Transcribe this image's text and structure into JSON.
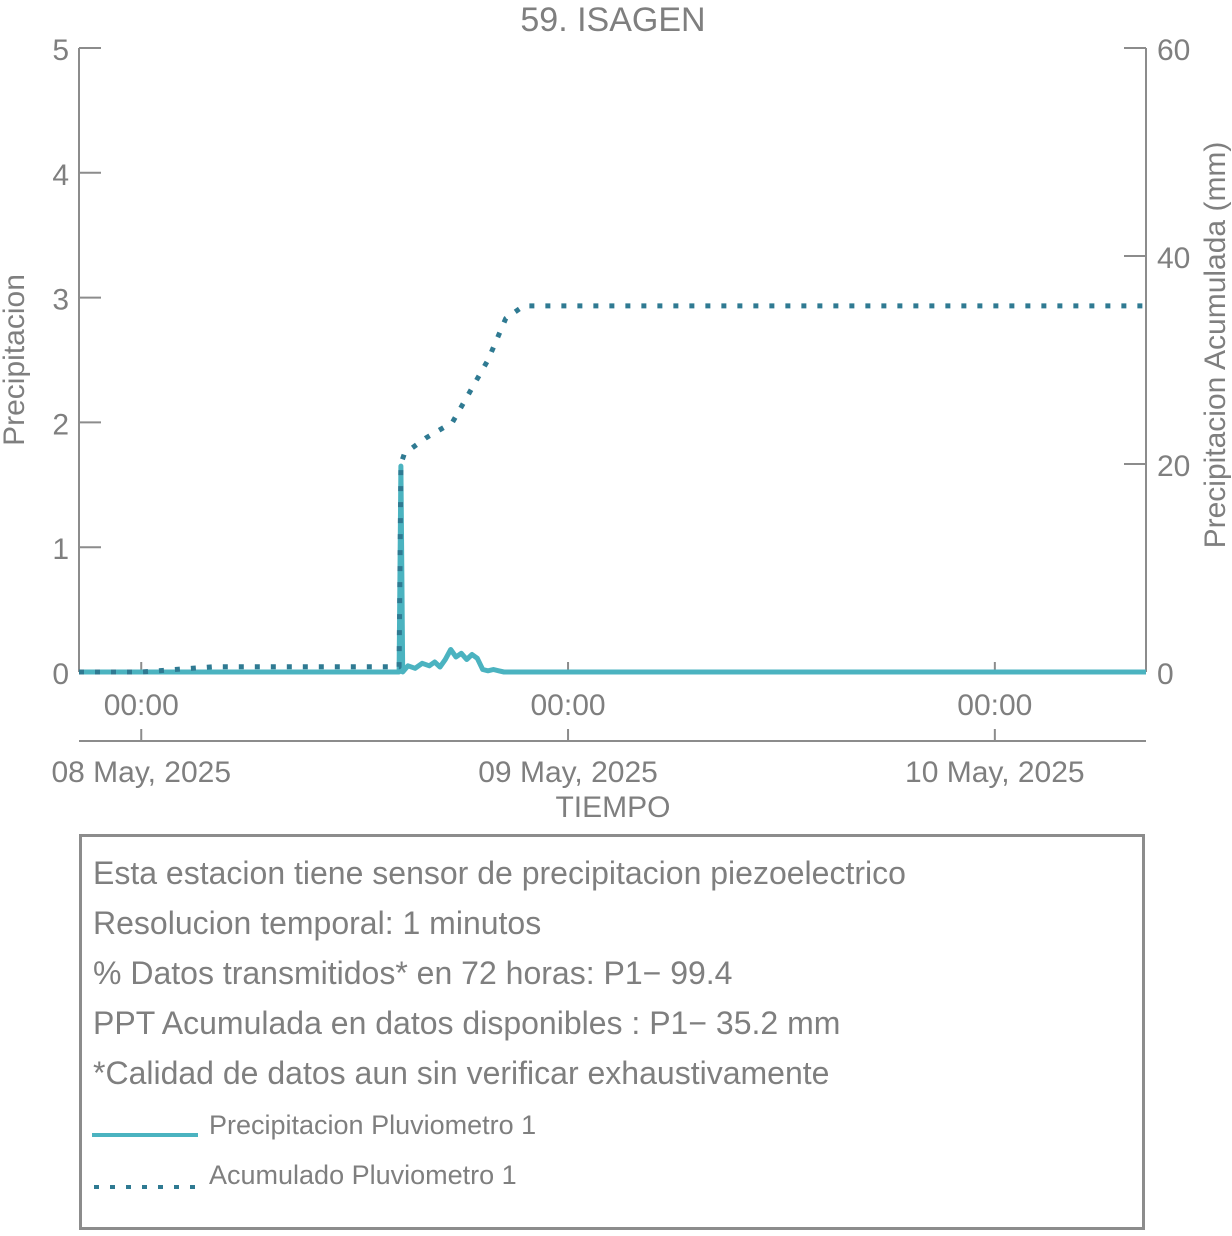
{
  "chart_data": {
    "type": "line",
    "title": "59. ISAGEN",
    "xlabel": "TIEMPO",
    "ylabel_left": "Precipitacion",
    "ylabel_right": "Precipitacion Acumulada (mm)",
    "ylim_left": [
      0,
      5
    ],
    "ylim_right": [
      0,
      60
    ],
    "yticks_left": [
      "0",
      "1",
      "2",
      "3",
      "4",
      "5"
    ],
    "yticks_right": [
      "0",
      "20",
      "40",
      "60"
    ],
    "xlim_hours": [
      -3.5,
      56.5
    ],
    "xticks": [
      {
        "hour": 0,
        "time": "00:00",
        "date": "08 May, 2025"
      },
      {
        "hour": 24,
        "time": "00:00",
        "date": "09 May, 2025"
      },
      {
        "hour": 48,
        "time": "00:00",
        "date": "10 May, 2025"
      }
    ],
    "grid": false,
    "series": [
      {
        "name": "Precipitacion Pluviometro 1",
        "axis": "left",
        "color": "#4bb3c0",
        "style": "solid",
        "x_hours": [
          -3.5,
          14.5,
          14.6,
          14.7,
          15.0,
          15.4,
          15.8,
          16.2,
          16.5,
          16.8,
          17.1,
          17.4,
          17.7,
          18.0,
          18.3,
          18.6,
          18.9,
          19.2,
          19.5,
          19.8,
          20.1,
          20.4,
          20.7,
          21.0,
          56.5
        ],
        "y": [
          0,
          0,
          1.65,
          0,
          0.05,
          0.03,
          0.07,
          0.05,
          0.08,
          0.04,
          0.1,
          0.18,
          0.12,
          0.15,
          0.1,
          0.14,
          0.11,
          0.02,
          0.01,
          0.02,
          0.01,
          0,
          0,
          0,
          0
        ]
      },
      {
        "name": "Acumulado Pluviometro 1",
        "axis": "right",
        "color": "#2f7a92",
        "style": "dotted",
        "x_hours": [
          -3.5,
          0,
          4,
          14.5,
          14.6,
          14.8,
          16,
          17.5,
          18.5,
          19.5,
          20.5,
          21.5,
          22.5,
          56.5
        ],
        "y": [
          0,
          0,
          0.5,
          0.5,
          20,
          21,
          22.5,
          24,
          27,
          30,
          34,
          35.2,
          35.2,
          35.2
        ]
      }
    ]
  },
  "info": {
    "lines": [
      "Esta estacion tiene sensor de precipitacion piezoelectrico",
      "Resolucion temporal: 1 minutos",
      "% Datos transmitidos* en 72 horas: P1− 99.4",
      "PPT Acumulada en datos disponibles : P1− 35.2 mm",
      "*Calidad de datos aun sin verificar exhaustivamente"
    ],
    "legend": [
      {
        "label": "Precipitacion Pluviometro 1",
        "style": "solid",
        "color": "#4bb3c0"
      },
      {
        "label": "Acumulado Pluviometro 1",
        "style": "dotted",
        "color": "#2f7a92"
      }
    ]
  }
}
